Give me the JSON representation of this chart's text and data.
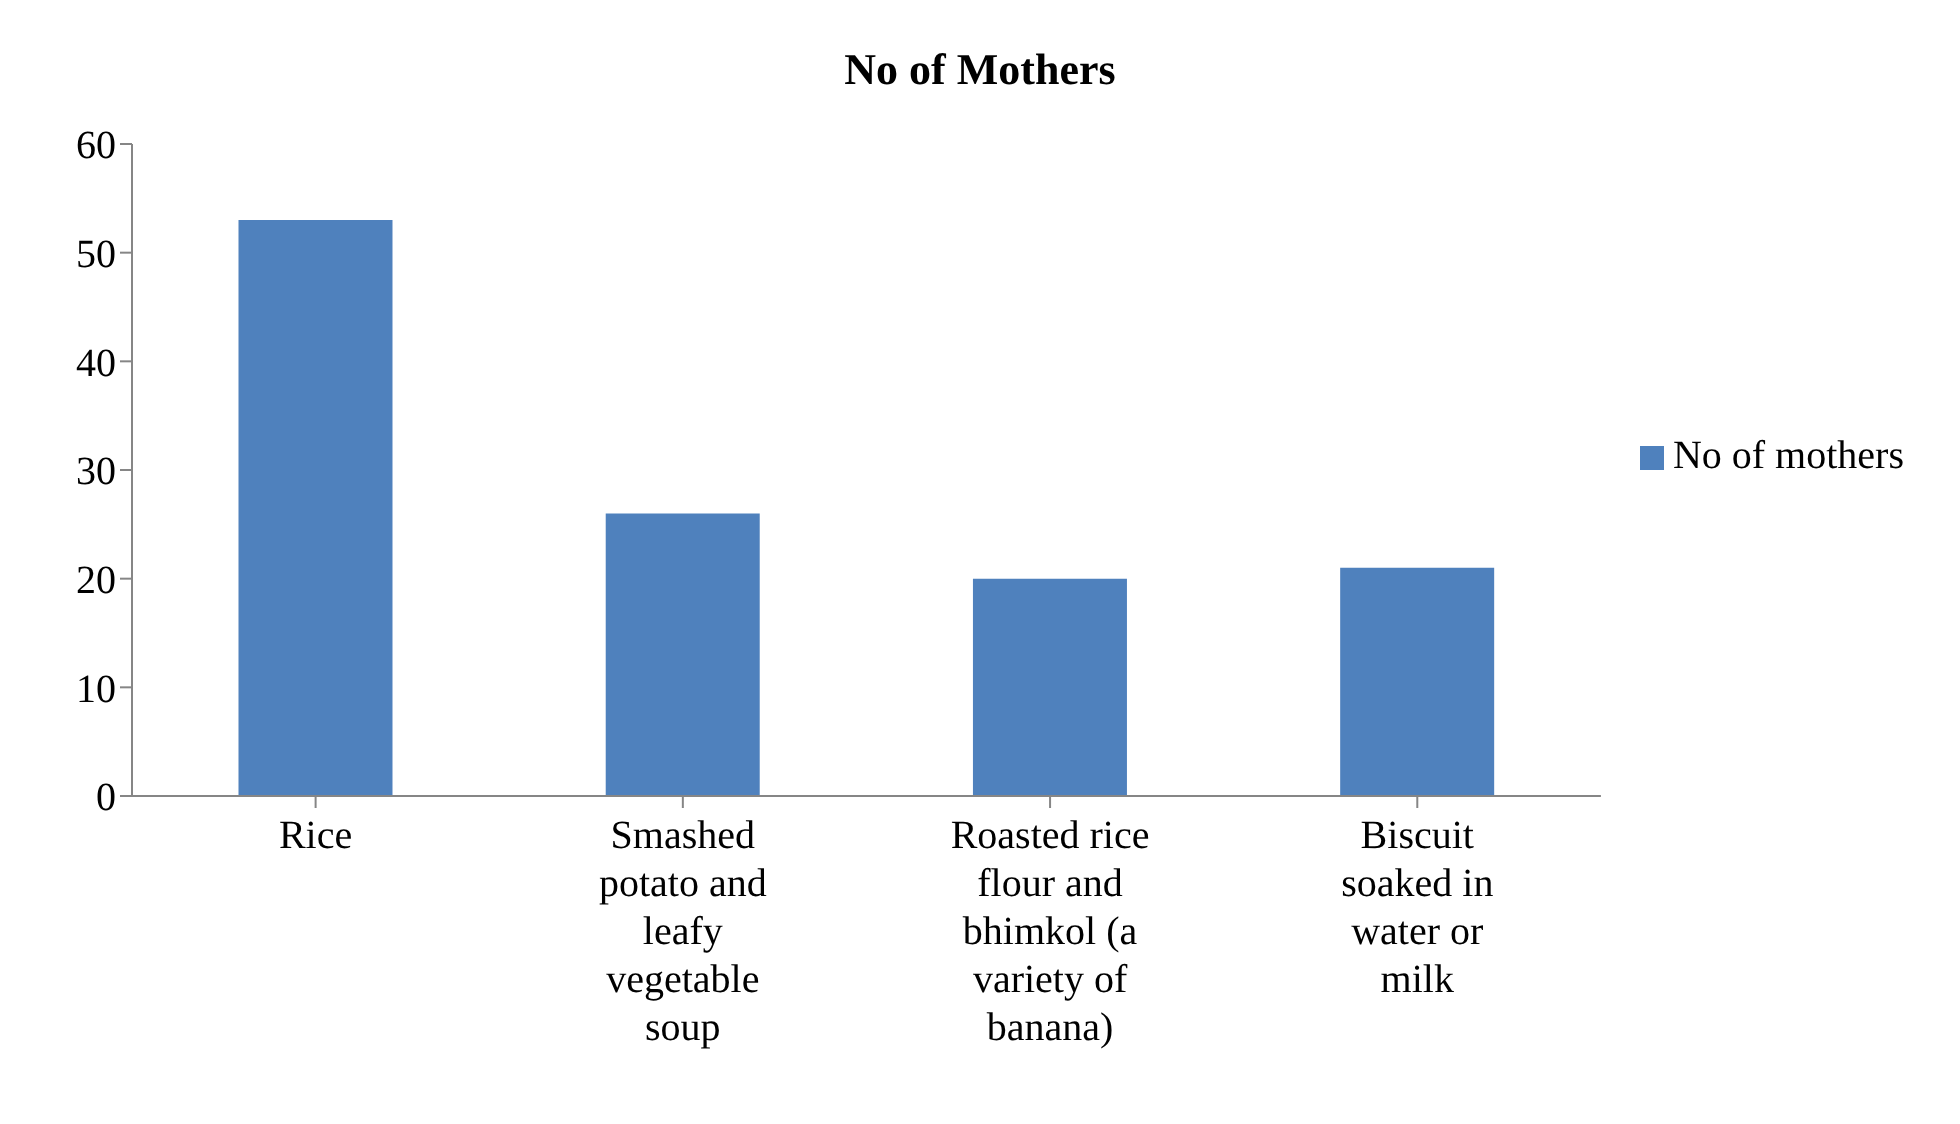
{
  "chart_data": {
    "type": "bar",
    "title": "No of Mothers",
    "categories": [
      "Rice",
      "Smashed potato and leafy vegetable soup",
      "Roasted rice flour and bhimkol (a variety of banana)",
      "Biscuit soaked in water or milk"
    ],
    "series": [
      {
        "name": "No of mothers",
        "color": "#4f81bd",
        "values": [
          53,
          26,
          20,
          21
        ]
      }
    ],
    "ylim": [
      0,
      60
    ],
    "yticks": [
      0,
      10,
      20,
      30,
      40,
      50,
      60
    ],
    "grid": false,
    "legend": "right"
  }
}
